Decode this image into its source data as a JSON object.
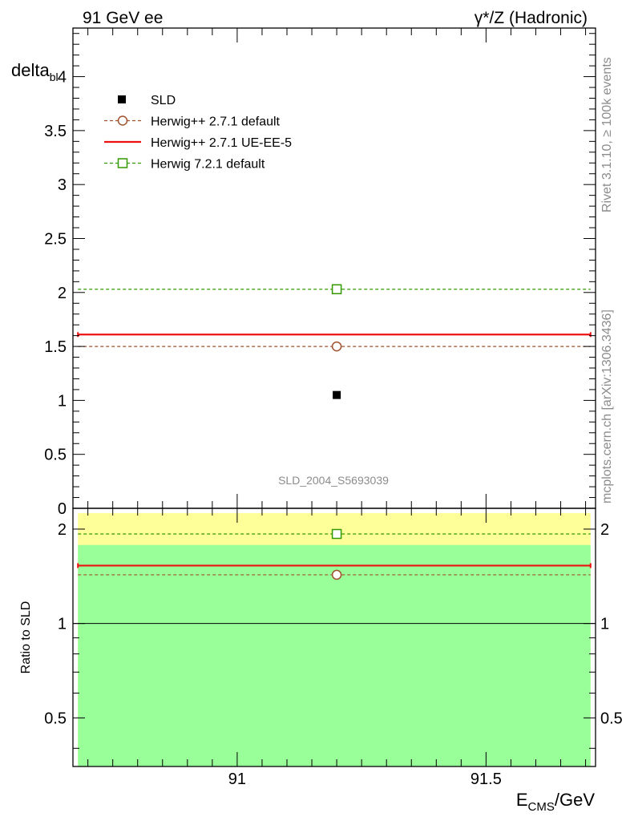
{
  "header": {
    "left_title": "91 GeV ee",
    "right_title_gamma": "γ",
    "right_title_rest": "*/Z (Hadronic)"
  },
  "side_labels": {
    "rivet": "Rivet 3.1.10, ≥ 100k events",
    "mcplots": "mcplots.cern.ch [arXiv:1306.3436]"
  },
  "watermark": "SLD_2004_S5693039",
  "chart_data": [
    {
      "type": "scatter",
      "ylabel_main": "delta",
      "ylabel_sub": "bl",
      "xlim": [
        90.67,
        91.72
      ],
      "ylim": [
        0,
        4.45
      ],
      "yticks": [
        "0",
        "0.5",
        "1",
        "1.5",
        "2",
        "2.5",
        "3",
        "3.5",
        "4"
      ],
      "series": [
        {
          "name": "SLD",
          "style": "marker-square",
          "color": "#000000",
          "x": [
            91.2
          ],
          "y": [
            1.05
          ],
          "xrange": [
            90.67,
            91.72
          ]
        },
        {
          "name": "Herwig++ 2.7.1 default",
          "style": "dashed-circle",
          "color": "#a0522d",
          "x": [
            91.2
          ],
          "y": [
            1.5
          ],
          "xrange": [
            90.67,
            91.72
          ]
        },
        {
          "name": "Herwig++ 2.7.1 UE-EE-5",
          "style": "solid",
          "color": "#ee1111",
          "x": [
            91.2
          ],
          "y": [
            1.61
          ],
          "xrange": [
            90.67,
            91.72
          ]
        },
        {
          "name": "Herwig 7.2.1 default",
          "style": "dashed-square",
          "color": "#339900",
          "x": [
            91.2
          ],
          "y": [
            2.03
          ],
          "xrange": [
            90.67,
            91.72
          ]
        }
      ]
    },
    {
      "type": "line",
      "ylabel": "Ratio to SLD",
      "xlabel_main": "E",
      "xlabel_sub": "CMS",
      "xlabel_unit": "/GeV",
      "xlim": [
        90.67,
        91.72
      ],
      "ylim": [
        0.35,
        2.33
      ],
      "yticks": [
        "0.5",
        "1",
        "2"
      ],
      "xticks": [
        "91",
        "91.5"
      ],
      "bands": [
        {
          "name": "yellow",
          "color": "#ffff99",
          "range": [
            0.35,
            2.25
          ]
        },
        {
          "name": "green",
          "color": "#99ff99",
          "range": [
            0.35,
            1.78
          ]
        }
      ],
      "reference": 1.0,
      "series": [
        {
          "name": "Herwig++ 2.7.1 default",
          "style": "dashed-circle",
          "color": "#a0522d",
          "y": 1.43
        },
        {
          "name": "Herwig++ 2.7.1 UE-EE-5",
          "style": "solid",
          "color": "#ee1111",
          "y": 1.53
        },
        {
          "name": "Herwig 7.2.1 default",
          "style": "dashed-square",
          "color": "#339900",
          "y": 1.93
        }
      ]
    }
  ]
}
